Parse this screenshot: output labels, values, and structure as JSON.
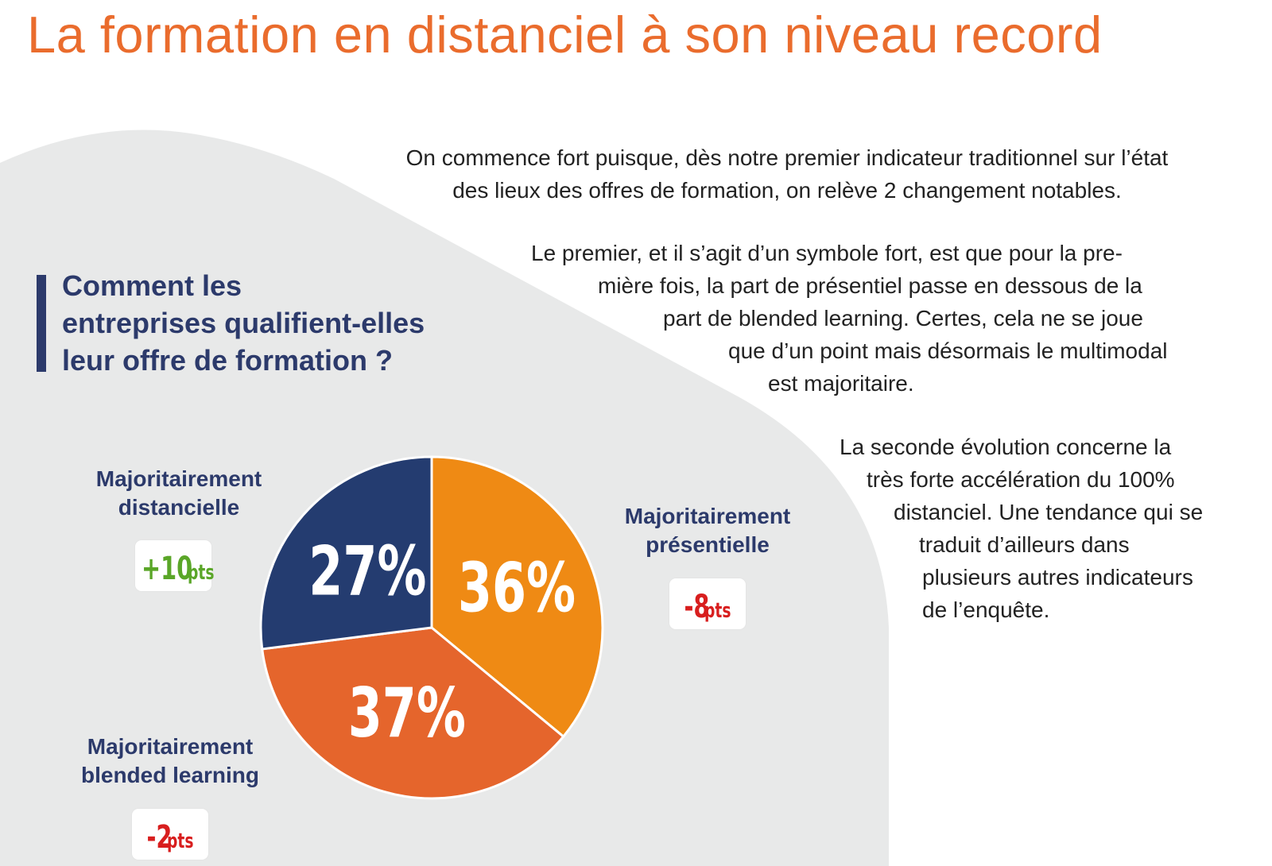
{
  "title": "La formation en distanciel à son niveau record",
  "intro": {
    "para_1_line_1": "On commence fort puisque, dès notre premier indicateur traditionnel sur l’état",
    "para_1_line_2": "des lieux  des offres de formation, on relève 2 changement notables.",
    "para_2_line_1": "Le premier, et il s’agit d’un symbole fort, est que pour la pre-",
    "para_2_line_2": "mière fois, la part de présentiel passe en dessous de la",
    "para_2_line_3": "part de blended learning. Certes, cela ne se joue",
    "para_2_line_4": "que d’un point mais désormais le multimodal",
    "para_2_line_5": "est majoritaire.",
    "para_3_line_1": "La seconde évolution concerne la",
    "para_3_line_2": "très forte accélération du 100%",
    "para_3_line_3": "distanciel. Une tendance qui se",
    "para_3_line_4": "traduit d’ailleurs dans",
    "para_3_line_5": "plusieurs autres indicateurs",
    "para_3_line_6": "de l’enquête."
  },
  "question": {
    "line_1": "Comment les",
    "line_2": "entreprises qualifient-elles",
    "line_3": "leur offre de formation ?"
  },
  "colors": {
    "accent": "#ea6c2d",
    "navy": "#2c3a6b",
    "background_shape": "#e8e9e9",
    "positive": "#5aa628",
    "negative": "#d81e1e"
  },
  "chart_data": {
    "type": "pie",
    "title": "",
    "slices": [
      {
        "label_line_1": "Majoritairement",
        "label_line_2": "présentielle",
        "value": 36,
        "value_label": "36%",
        "change_value": "-8",
        "change_unit": "pts",
        "color": "#ef8a14"
      },
      {
        "label_line_1": "Majoritairement",
        "label_line_2": "blended learning",
        "value": 37,
        "value_label": "37%",
        "change_value": "-2",
        "change_unit": "pts",
        "color": "#e5652c"
      },
      {
        "label_line_1": "Majoritairement",
        "label_line_2": "distancielle",
        "value": 27,
        "value_label": "27%",
        "change_value": "+10",
        "change_unit": "pts",
        "color": "#243c70"
      }
    ]
  }
}
